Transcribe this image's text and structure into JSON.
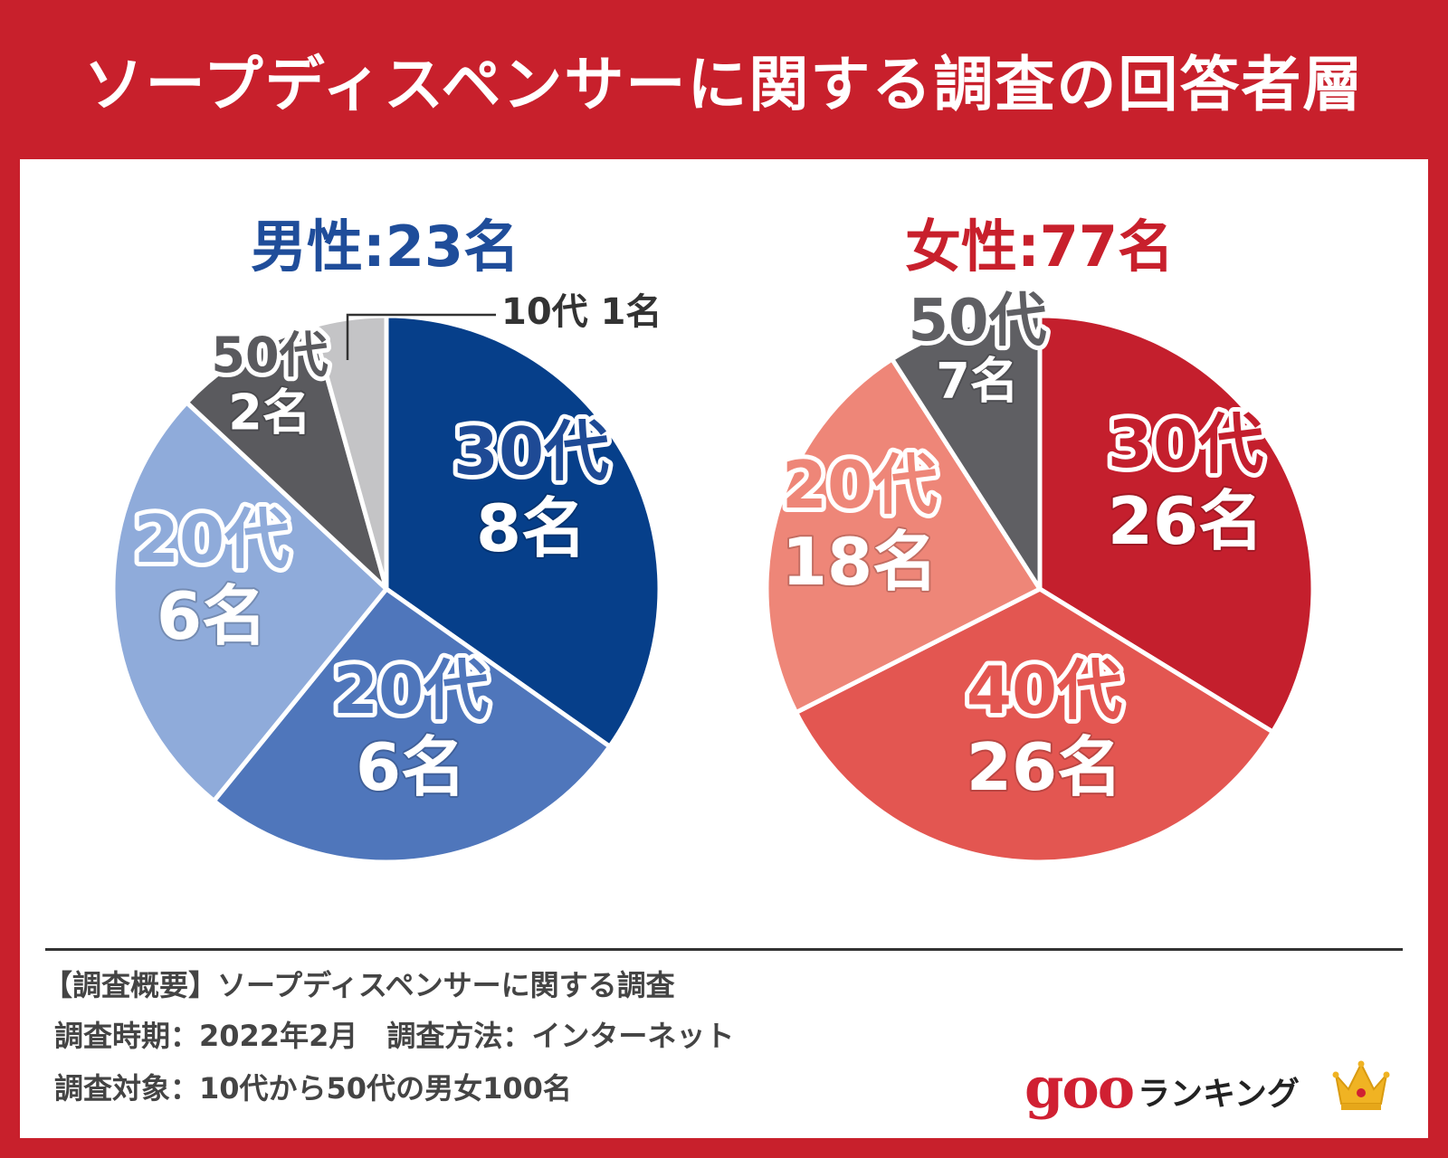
{
  "title": "ソープディスペンサーに関する調査の回答者層",
  "chart_data": [
    {
      "type": "pie",
      "title": "男性:23名",
      "unit": "名",
      "slices": [
        {
          "label": "30代",
          "value": 8,
          "value_label": "8名",
          "color": "#063f8a"
        },
        {
          "label": "20代",
          "value": 6,
          "value_label": "6名",
          "color": "#4f76bb"
        },
        {
          "label": "20代",
          "value": 6,
          "value_label": "6名",
          "color": "#8fabda"
        },
        {
          "label": "50代",
          "value": 2,
          "value_label": "2名",
          "color": "#5a5a5e"
        },
        {
          "label": "10代",
          "value": 1,
          "value_label": "1名",
          "color": "#c4c4c6"
        }
      ],
      "callout": "10代 1名"
    },
    {
      "type": "pie",
      "title": "女性:77名",
      "unit": "名",
      "slices": [
        {
          "label": "30代",
          "value": 26,
          "value_label": "26名",
          "color": "#c41f2d"
        },
        {
          "label": "40代",
          "value": 26,
          "value_label": "26名",
          "color": "#e35651"
        },
        {
          "label": "20代",
          "value": 18,
          "value_label": "18名",
          "color": "#ee8678"
        },
        {
          "label": "50代",
          "value": 7,
          "value_label": "7名",
          "color": "#5f5f63"
        }
      ]
    }
  ],
  "footer": {
    "summary": "【調査概要】ソープディスペンサーに関する調査",
    "period": "調査時期：2022年2月　調査方法：インターネット",
    "target": "調査対象：10代から50代の男女100名"
  },
  "logo": {
    "brand": "goo",
    "text": "ランキング"
  },
  "colors": {
    "brand_red": "#c8202c",
    "male_title": "#1f4d9a",
    "female_title": "#c8202c"
  }
}
